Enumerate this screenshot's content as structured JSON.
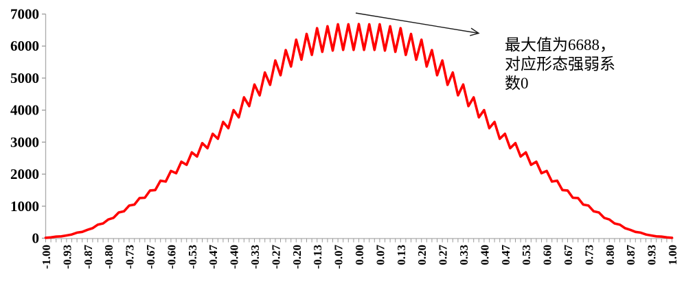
{
  "chart_data": {
    "type": "line",
    "title": "",
    "xlabel": "",
    "ylabel": "",
    "xlim": [
      -1.0,
      1.0
    ],
    "ylim": [
      0,
      7000
    ],
    "grid": false,
    "legend": "none",
    "line_color": "#FF0000",
    "axis_color": "#ABABAB",
    "tick_color": "#999999",
    "text_color": "#000000",
    "x_start": -1.0,
    "x_step": 0.0166667,
    "x_tick_labels": [
      "-1.00",
      "-0.93",
      "-0.87",
      "-0.80",
      "-0.73",
      "-0.67",
      "-0.60",
      "-0.53",
      "-0.47",
      "-0.40",
      "-0.33",
      "-0.27",
      "-0.20",
      "-0.13",
      "-0.07",
      "0.00",
      "0.07",
      "0.13",
      "0.20",
      "0.27",
      "0.33",
      "0.40",
      "0.47",
      "0.53",
      "0.60",
      "0.67",
      "0.73",
      "0.80",
      "0.87",
      "0.93",
      "1.00"
    ],
    "y_tick_labels": [
      "7000",
      "6000",
      "5000",
      "4000",
      "3000",
      "2000",
      "1000",
      "0"
    ],
    "values": [
      12,
      25,
      49,
      58,
      85,
      116,
      174,
      197,
      262,
      312,
      424,
      461,
      585,
      636,
      803,
      839,
      1020,
      1048,
      1255,
      1263,
      1490,
      1503,
      1795,
      1768,
      2100,
      2030,
      2390,
      2290,
      2680,
      2550,
      2970,
      2810,
      3260,
      3105,
      3630,
      3435,
      4000,
      3775,
      4400,
      4125,
      4800,
      4462,
      5175,
      4788,
      5550,
      5088,
      5875,
      5362,
      6200,
      5575,
      6380,
      5725,
      6560,
      5820,
      6620,
      5860,
      6680,
      5880,
      6680,
      5880,
      6688,
      5880,
      6680,
      5880,
      6680,
      5860,
      6620,
      5820,
      6560,
      5725,
      6380,
      5575,
      6200,
      5362,
      5875,
      5088,
      5550,
      4788,
      5175,
      4462,
      4800,
      4125,
      4400,
      3775,
      4000,
      3435,
      3630,
      3105,
      3260,
      2810,
      2970,
      2550,
      2680,
      2290,
      2390,
      2030,
      2100,
      1768,
      1795,
      1503,
      1490,
      1263,
      1255,
      1048,
      1020,
      839,
      803,
      636,
      585,
      461,
      424,
      312,
      262,
      197,
      174,
      116,
      85,
      58,
      49,
      25,
      12
    ],
    "annotation": {
      "text": "最大值为6688，对应形态强弱系数0",
      "lines": [
        "最大值为6688，",
        "对应形态强弱系",
        "数0"
      ],
      "max_value": 6688,
      "at_coefficient": 0,
      "arrow_color": "#1a1a1a"
    }
  }
}
